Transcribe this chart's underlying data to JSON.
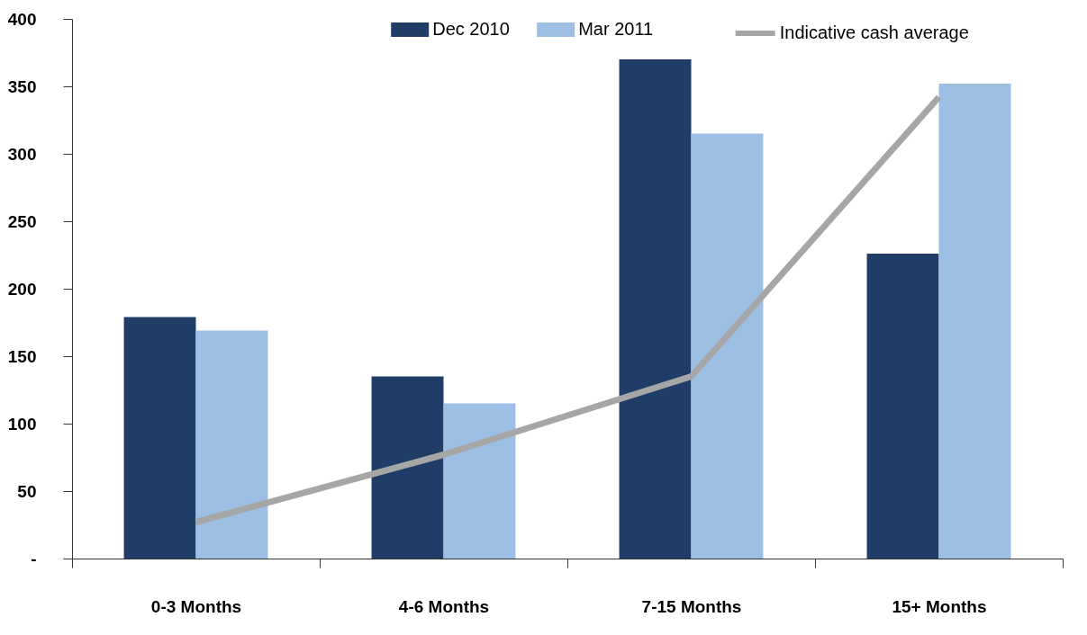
{
  "chart_data": {
    "type": "bar",
    "categories": [
      "0-3 Months",
      "4-6 Months",
      "7-15 Months",
      "15+ Months"
    ],
    "series": [
      {
        "name": "Dec 2010",
        "color": "#1f3d66",
        "values": [
          179,
          135,
          370,
          226
        ]
      },
      {
        "name": "Mar 2011",
        "color": "#9dbfe4",
        "values": [
          169,
          115,
          315,
          352
        ]
      },
      {
        "name": "Indicative cash average",
        "type": "line",
        "color": "#a6a6a6",
        "values": [
          27,
          77,
          135,
          342
        ]
      }
    ],
    "ylim": [
      0,
      400
    ],
    "yticks": [
      {
        "value": 0,
        "label": "-"
      },
      50,
      100,
      150,
      200,
      250,
      300,
      350,
      400
    ],
    "grid": false,
    "legend": "top right"
  }
}
